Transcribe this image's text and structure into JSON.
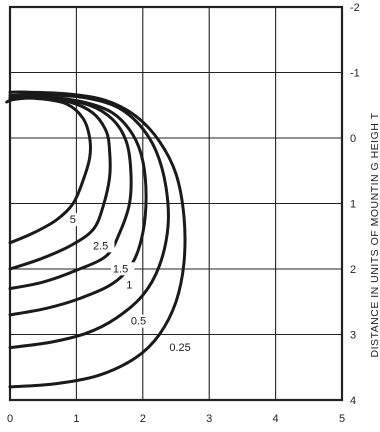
{
  "chart_data": {
    "type": "line",
    "title": "",
    "xlabel": "",
    "ylabel_right": "DISTANCE   IN UNITS  OF  MOUNTIN  G HEIGH T",
    "xlim": [
      0,
      5
    ],
    "ylim": [
      -2,
      4
    ],
    "y_inverted": true,
    "grid": true,
    "x_ticks": [
      "0",
      "1",
      "2",
      "3",
      "4",
      "5"
    ],
    "y_ticks": [
      "-2",
      "-1",
      "0",
      "1",
      "2",
      "3",
      "4"
    ],
    "series": [
      {
        "name": "5",
        "label_at": [
          0.9,
          1.3
        ],
        "points": [
          [
            0,
            1.6
          ],
          [
            0.35,
            1.45
          ],
          [
            0.7,
            1.25
          ],
          [
            0.95,
            1.0
          ],
          [
            1.1,
            0.65
          ],
          [
            1.2,
            0.3
          ],
          [
            1.2,
            0.0
          ],
          [
            1.1,
            -0.3
          ],
          [
            0.85,
            -0.52
          ],
          [
            0.45,
            -0.6
          ],
          [
            0.1,
            -0.6
          ],
          [
            -0.05,
            -0.55
          ]
        ]
      },
      {
        "name": "2.5",
        "label_at": [
          1.25,
          1.7
        ],
        "points": [
          [
            0,
            2.0
          ],
          [
            0.45,
            1.85
          ],
          [
            0.9,
            1.65
          ],
          [
            1.25,
            1.4
          ],
          [
            1.4,
            1.05
          ],
          [
            1.5,
            0.6
          ],
          [
            1.5,
            0.2
          ],
          [
            1.45,
            -0.1
          ],
          [
            1.25,
            -0.38
          ],
          [
            0.9,
            -0.55
          ],
          [
            0.4,
            -0.62
          ],
          [
            0,
            -0.58
          ]
        ]
      },
      {
        "name": "1.5",
        "label_at": [
          1.55,
          2.05
        ],
        "points": [
          [
            0,
            2.3
          ],
          [
            0.5,
            2.2
          ],
          [
            1.0,
            2.02
          ],
          [
            1.45,
            1.8
          ],
          [
            1.65,
            1.45
          ],
          [
            1.8,
            1.0
          ],
          [
            1.82,
            0.5
          ],
          [
            1.75,
            0.05
          ],
          [
            1.55,
            -0.28
          ],
          [
            1.2,
            -0.5
          ],
          [
            0.7,
            -0.6
          ],
          [
            0.2,
            -0.62
          ],
          [
            0,
            -0.6
          ]
        ]
      },
      {
        "name": "1",
        "label_at": [
          1.75,
          2.3
        ],
        "points": [
          [
            0,
            2.7
          ],
          [
            0.55,
            2.6
          ],
          [
            1.05,
            2.45
          ],
          [
            1.55,
            2.22
          ],
          [
            1.85,
            1.9
          ],
          [
            2.0,
            1.45
          ],
          [
            2.05,
            0.9
          ],
          [
            2.0,
            0.35
          ],
          [
            1.85,
            -0.05
          ],
          [
            1.55,
            -0.38
          ],
          [
            1.1,
            -0.55
          ],
          [
            0.5,
            -0.63
          ],
          [
            0,
            -0.62
          ]
        ]
      },
      {
        "name": "0.5",
        "label_at": [
          1.82,
          2.85
        ],
        "points": [
          [
            0,
            3.2
          ],
          [
            0.6,
            3.12
          ],
          [
            1.15,
            2.98
          ],
          [
            1.6,
            2.75
          ],
          [
            2.0,
            2.4
          ],
          [
            2.25,
            1.95
          ],
          [
            2.38,
            1.35
          ],
          [
            2.35,
            0.75
          ],
          [
            2.2,
            0.2
          ],
          [
            1.95,
            -0.2
          ],
          [
            1.6,
            -0.48
          ],
          [
            1.1,
            -0.62
          ],
          [
            0.5,
            -0.66
          ],
          [
            0,
            -0.65
          ]
        ]
      },
      {
        "name": "0.25",
        "label_at": [
          2.4,
          3.25
        ],
        "points": [
          [
            0,
            3.8
          ],
          [
            0.7,
            3.75
          ],
          [
            1.35,
            3.62
          ],
          [
            1.9,
            3.35
          ],
          [
            2.25,
            3.0
          ],
          [
            2.5,
            2.5
          ],
          [
            2.62,
            1.9
          ],
          [
            2.62,
            1.2
          ],
          [
            2.5,
            0.55
          ],
          [
            2.25,
            0.05
          ],
          [
            1.9,
            -0.33
          ],
          [
            1.45,
            -0.57
          ],
          [
            0.9,
            -0.67
          ],
          [
            0.3,
            -0.7
          ],
          [
            0,
            -0.7
          ]
        ]
      }
    ]
  }
}
